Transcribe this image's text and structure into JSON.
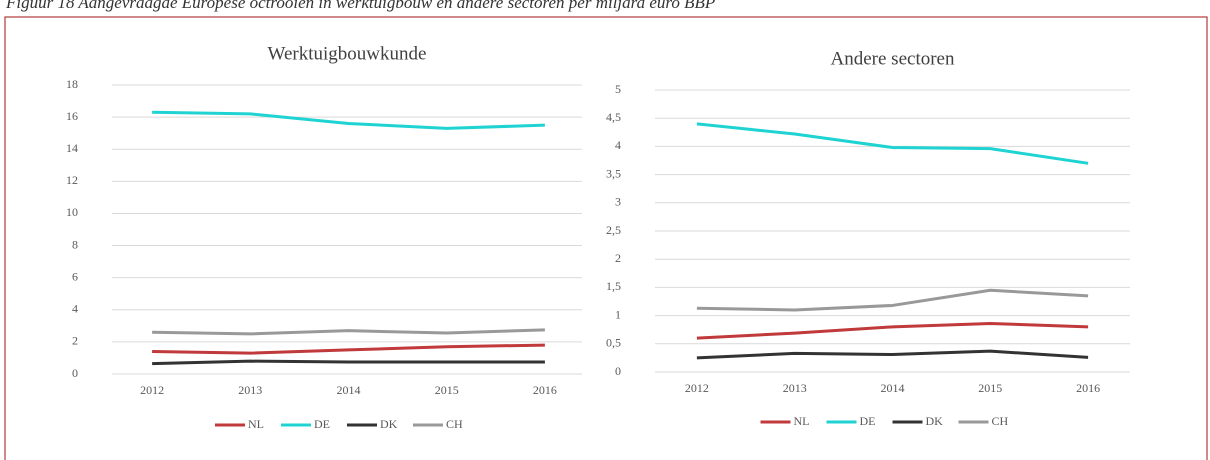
{
  "caption": "Figuur 18 Aangevraagde Europese octrooien in werktuigbouw en andere sectoren per miljard euro BBP",
  "chart_data": [
    {
      "type": "line",
      "title": "Werktuigbouwkunde",
      "categories": [
        "2012",
        "2013",
        "2014",
        "2015",
        "2016"
      ],
      "ylim": [
        0,
        18
      ],
      "yticks": [
        0,
        2,
        4,
        6,
        8,
        10,
        12,
        14,
        16,
        18
      ],
      "grid": true,
      "legend": "bottom",
      "series": [
        {
          "name": "NL",
          "color": "#c0393b",
          "values": [
            1.4,
            1.3,
            1.5,
            1.7,
            1.8
          ]
        },
        {
          "name": "DE",
          "color": "#1fd3d3",
          "values": [
            16.3,
            16.2,
            15.6,
            15.3,
            15.5
          ]
        },
        {
          "name": "DK",
          "color": "#333333",
          "values": [
            0.65,
            0.8,
            0.75,
            0.75,
            0.75
          ]
        },
        {
          "name": "CH",
          "color": "#999999",
          "values": [
            2.6,
            2.5,
            2.7,
            2.55,
            2.75
          ]
        }
      ]
    },
    {
      "type": "line",
      "title": "Andere sectoren",
      "categories": [
        "2012",
        "2013",
        "2014",
        "2015",
        "2016"
      ],
      "ylim": [
        0,
        5
      ],
      "yticks": [
        0,
        {
          "value": 0.5,
          "label": "0,5"
        },
        1,
        {
          "value": 1.5,
          "label": "1,5"
        },
        2,
        {
          "value": 2.5,
          "label": "2,5"
        },
        3,
        {
          "value": 3.5,
          "label": "3,5"
        },
        4,
        {
          "value": 4.5,
          "label": "4,5"
        },
        5
      ],
      "grid": true,
      "legend": "bottom",
      "series": [
        {
          "name": "NL",
          "color": "#c0393b",
          "values": [
            0.6,
            0.69,
            0.8,
            0.86,
            0.8
          ]
        },
        {
          "name": "DE",
          "color": "#1fd3d3",
          "values": [
            4.4,
            4.22,
            3.98,
            3.96,
            3.7
          ]
        },
        {
          "name": "DK",
          "color": "#333333",
          "values": [
            0.25,
            0.33,
            0.31,
            0.37,
            0.26
          ]
        },
        {
          "name": "CH",
          "color": "#999999",
          "values": [
            1.13,
            1.1,
            1.18,
            1.45,
            1.35
          ]
        }
      ]
    }
  ]
}
